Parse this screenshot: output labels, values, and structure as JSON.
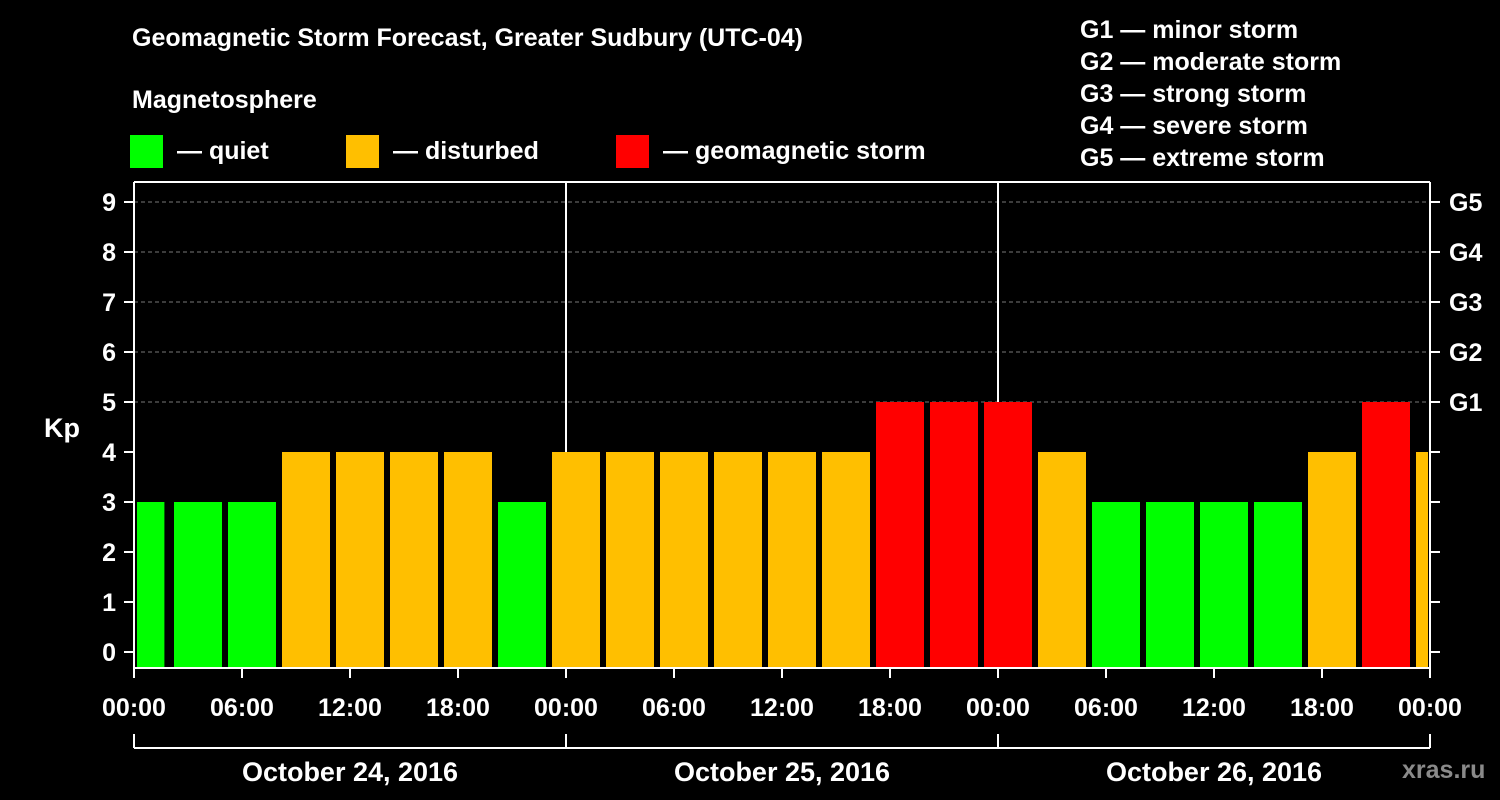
{
  "title": "Geomagnetic Storm Forecast, Greater Sudbury (UTC-04)",
  "subtitle": "Magnetosphere",
  "legend": [
    {
      "label": "— quiet",
      "color": "#00ff00"
    },
    {
      "label": "— disturbed",
      "color": "#ffbf00"
    },
    {
      "label": "— geomagnetic storm",
      "color": "#ff0000"
    }
  ],
  "g_levels": [
    "G1 — minor storm",
    "G2 — moderate storm",
    "G3 — strong storm",
    "G4 — severe storm",
    "G5 — extreme storm"
  ],
  "watermark": "xras.ru",
  "chart_data": {
    "type": "bar",
    "title": "Geomagnetic Storm Forecast, Greater Sudbury (UTC-04)",
    "ylabel": "Kp",
    "ylim": [
      0,
      9
    ],
    "yticks": [
      "0",
      "1",
      "2",
      "3",
      "4",
      "5",
      "6",
      "7",
      "8",
      "9"
    ],
    "right_ticks": [
      {
        "kp": 5,
        "label": "G1"
      },
      {
        "kp": 6,
        "label": "G2"
      },
      {
        "kp": 7,
        "label": "G3"
      },
      {
        "kp": 8,
        "label": "G4"
      },
      {
        "kp": 9,
        "label": "G5"
      }
    ],
    "xlim_hours": [
      0,
      72
    ],
    "x_tick_labels": [
      "00:00",
      "06:00",
      "12:00",
      "18:00",
      "00:00",
      "06:00",
      "12:00",
      "18:00",
      "00:00",
      "06:00",
      "12:00",
      "18:00",
      "00:00"
    ],
    "days": [
      "October 24, 2016",
      "October 25, 2016",
      "October 26, 2016"
    ],
    "bars": [
      {
        "start": 0,
        "end": 1.8,
        "kp": 3,
        "level": "quiet"
      },
      {
        "start": 2,
        "end": 5,
        "kp": 3,
        "level": "quiet"
      },
      {
        "start": 5,
        "end": 8,
        "kp": 3,
        "level": "quiet"
      },
      {
        "start": 8,
        "end": 11,
        "kp": 4,
        "level": "disturbed"
      },
      {
        "start": 11,
        "end": 14,
        "kp": 4,
        "level": "disturbed"
      },
      {
        "start": 14,
        "end": 17,
        "kp": 4,
        "level": "disturbed"
      },
      {
        "start": 17,
        "end": 20,
        "kp": 4,
        "level": "disturbed"
      },
      {
        "start": 20,
        "end": 23,
        "kp": 3,
        "level": "quiet"
      },
      {
        "start": 23,
        "end": 26,
        "kp": 4,
        "level": "disturbed"
      },
      {
        "start": 26,
        "end": 29,
        "kp": 4,
        "level": "disturbed"
      },
      {
        "start": 29,
        "end": 32,
        "kp": 4,
        "level": "disturbed"
      },
      {
        "start": 32,
        "end": 35,
        "kp": 4,
        "level": "disturbed"
      },
      {
        "start": 35,
        "end": 38,
        "kp": 4,
        "level": "disturbed"
      },
      {
        "start": 38,
        "end": 41,
        "kp": 4,
        "level": "disturbed"
      },
      {
        "start": 41,
        "end": 44,
        "kp": 5,
        "level": "storm"
      },
      {
        "start": 44,
        "end": 47,
        "kp": 5,
        "level": "storm"
      },
      {
        "start": 47,
        "end": 50,
        "kp": 5,
        "level": "storm"
      },
      {
        "start": 50,
        "end": 53,
        "kp": 4,
        "level": "disturbed"
      },
      {
        "start": 53,
        "end": 56,
        "kp": 3,
        "level": "quiet"
      },
      {
        "start": 56,
        "end": 59,
        "kp": 3,
        "level": "quiet"
      },
      {
        "start": 59,
        "end": 62,
        "kp": 3,
        "level": "quiet"
      },
      {
        "start": 62,
        "end": 65,
        "kp": 3,
        "level": "quiet"
      },
      {
        "start": 65,
        "end": 68,
        "kp": 4,
        "level": "disturbed"
      },
      {
        "start": 68,
        "end": 71,
        "kp": 5,
        "level": "storm"
      },
      {
        "start": 71,
        "end": 72,
        "kp": 4,
        "level": "disturbed"
      }
    ],
    "level_colors": {
      "quiet": "#00ff00",
      "disturbed": "#ffbf00",
      "storm": "#ff0000"
    }
  }
}
